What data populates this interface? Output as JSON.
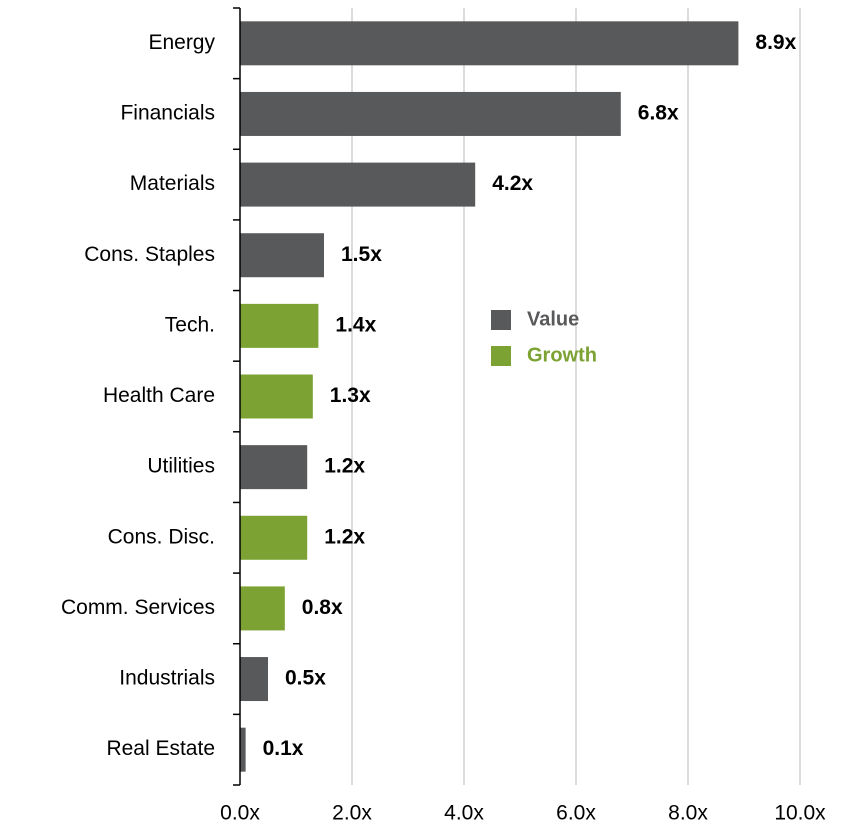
{
  "chart_data": {
    "type": "hbar",
    "categories": [
      "Energy",
      "Financials",
      "Materials",
      "Cons. Staples",
      "Tech.",
      "Health Care",
      "Utilities",
      "Cons. Disc.",
      "Comm. Services",
      "Industrials",
      "Real Estate"
    ],
    "series": [
      {
        "name": "Value",
        "color": "#58595b",
        "values": [
          8.9,
          6.8,
          4.2,
          1.5,
          null,
          null,
          1.2,
          null,
          null,
          0.5,
          0.1
        ],
        "value_labels": [
          "8.9x",
          "6.8x",
          "4.2x",
          "1.5x",
          null,
          null,
          "1.2x",
          null,
          null,
          "0.5x",
          "0.1x"
        ]
      },
      {
        "name": "Growth",
        "color": "#7ba232",
        "values": [
          null,
          null,
          null,
          null,
          1.4,
          1.3,
          null,
          1.2,
          0.8,
          null,
          null
        ],
        "value_labels": [
          null,
          null,
          null,
          null,
          "1.4x",
          "1.3x",
          null,
          "1.2x",
          "0.8x",
          null,
          null
        ]
      }
    ],
    "xlim": [
      0,
      10
    ],
    "xticks": [
      {
        "value": 0,
        "label": "0.0x"
      },
      {
        "value": 2,
        "label": "2.0x"
      },
      {
        "value": 4,
        "label": "4.0x"
      },
      {
        "value": 6,
        "label": "6.0x"
      },
      {
        "value": 8,
        "label": "8.0x"
      },
      {
        "value": 10,
        "label": "10.0x"
      }
    ],
    "grid": true
  }
}
